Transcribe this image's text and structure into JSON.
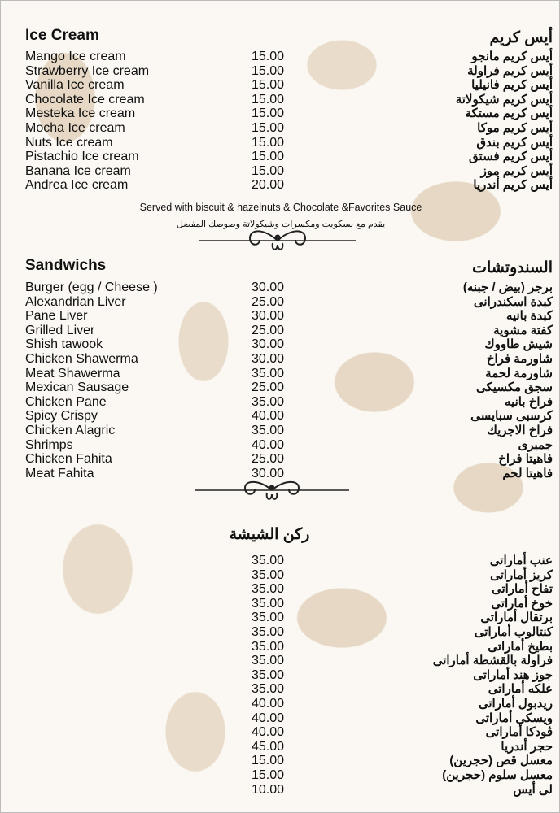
{
  "ice_cream": {
    "title_en": "Ice Cream",
    "title_ar": "أيس كريم",
    "items": [
      {
        "en": "Mango Ice cream",
        "price": "15.00",
        "ar": "أيس كريم مانجو"
      },
      {
        "en": "Strawberry Ice cream",
        "price": "15.00",
        "ar": "أيس كريم فراولة"
      },
      {
        "en": "Vanilla Ice cream",
        "price": "15.00",
        "ar": "أيس كريم فانيليا"
      },
      {
        "en": "Chocolate Ice cream",
        "price": "15.00",
        "ar": "أيس كريم شيكولاتة"
      },
      {
        "en": "Mesteka Ice cream",
        "price": "15.00",
        "ar": "أيس كريم مستكة"
      },
      {
        "en": "Mocha Ice cream",
        "price": "15.00",
        "ar": "أيس كريم موكا"
      },
      {
        "en": "Nuts Ice cream",
        "price": "15.00",
        "ar": "أيس كريم بندق"
      },
      {
        "en": "Pistachio Ice cream",
        "price": "15.00",
        "ar": "أيس كريم فستق"
      },
      {
        "en": "Banana Ice cream",
        "price": "15.00",
        "ar": "أيس كريم موز"
      },
      {
        "en": "Andrea Ice cream",
        "price": "20.00",
        "ar": "أيس كريم أندريا"
      }
    ],
    "note_en": "Served with biscuit & hazelnuts & Chocolate &Favorites Sauce",
    "note_ar": "يقدم مع بسكويت ومكسرات وشيكولاتة وصوصك المفضل"
  },
  "sandwiches": {
    "title_en": "Sandwichs",
    "title_ar": "السندوتشات",
    "items": [
      {
        "en": "Burger (egg / Cheese )",
        "price": "30.00",
        "ar": "برجر (بيض / جبنه)"
      },
      {
        "en": "Alexandrian Liver",
        "price": "25.00",
        "ar": "كبدة اسكندرانى"
      },
      {
        "en": "Pane Liver",
        "price": "30.00",
        "ar": "كبدة بانيه"
      },
      {
        "en": "Grilled Liver",
        "price": "25.00",
        "ar": "كفتة مشوية"
      },
      {
        "en": "Shish tawook",
        "price": "30.00",
        "ar": "شيش طاووك"
      },
      {
        "en": "Chicken Shawerma",
        "price": "30.00",
        "ar": "شاورمة فراخ"
      },
      {
        "en": "Meat Shawerma",
        "price": "35.00",
        "ar": "شاورمة لحمة"
      },
      {
        "en": "Mexican Sausage",
        "price": "25.00",
        "ar": "سجق مكسيكى"
      },
      {
        "en": "Chicken Pane",
        "price": "35.00",
        "ar": "فراخ بانيه"
      },
      {
        "en": "Spicy Crispy",
        "price": "40.00",
        "ar": "كرسبى سبايسى"
      },
      {
        "en": "Chicken Alagric",
        "price": "35.00",
        "ar": "فراخ الاجريك"
      },
      {
        "en": "Shrimps",
        "price": "40.00",
        "ar": "جمبرى"
      },
      {
        "en": "Chicken Fahita",
        "price": "25.00",
        "ar": "فاهيتا فراخ"
      },
      {
        "en": "Meat Fahita",
        "price": "30.00",
        "ar": "فاهيتا لحم"
      }
    ]
  },
  "shisha": {
    "title_ar": "ركن الشيشة",
    "items": [
      {
        "price": "35.00",
        "ar": "عنب أماراتى"
      },
      {
        "price": "35.00",
        "ar": "كريز أماراتى"
      },
      {
        "price": "35.00",
        "ar": "تفاح أماراتى"
      },
      {
        "price": "35.00",
        "ar": "خوخ أماراتى"
      },
      {
        "price": "35.00",
        "ar": "برتقال أماراتى"
      },
      {
        "price": "35.00",
        "ar": "كنتالوب أماراتى"
      },
      {
        "price": "35.00",
        "ar": "بطيخ أماراتى"
      },
      {
        "price": "35.00",
        "ar": "فراولة بالقشطة أماراتى"
      },
      {
        "price": "35.00",
        "ar": "جوز هند أماراتى"
      },
      {
        "price": "35.00",
        "ar": "علكه أماراتى"
      },
      {
        "price": "40.00",
        "ar": "ريدبول أماراتى"
      },
      {
        "price": "40.00",
        "ar": "ويسكى أماراتى"
      },
      {
        "price": "40.00",
        "ar": "ڤودكا أماراتى"
      },
      {
        "price": "45.00",
        "ar": "حجر أندريا"
      },
      {
        "price": "15.00",
        "ar": "معسل قص (حجرين)"
      },
      {
        "price": "15.00",
        "ar": "معسل سلوم (حجرين)"
      },
      {
        "price": "10.00",
        "ar": "لى أيس"
      }
    ]
  }
}
